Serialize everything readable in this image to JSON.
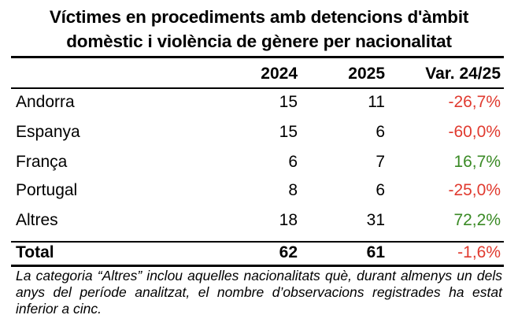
{
  "title": {
    "line1": "Víctimes en procediments amb detencions d'àmbit",
    "line2": "domèstic i violència de gènere per nacionalitat"
  },
  "table": {
    "headers": {
      "name": "",
      "y1": "2024",
      "y2": "2025",
      "var": "Var. 24/25"
    },
    "rows": [
      {
        "name": "Andorra",
        "y1": "15",
        "y2": "11",
        "var": "-26,7%",
        "trend": "neg"
      },
      {
        "name": "Espanya",
        "y1": "15",
        "y2": "6",
        "var": "-60,0%",
        "trend": "neg"
      },
      {
        "name": "França",
        "y1": "6",
        "y2": "7",
        "var": "16,7%",
        "trend": "pos"
      },
      {
        "name": "Portugal",
        "y1": "8",
        "y2": "6",
        "var": "-25,0%",
        "trend": "neg"
      },
      {
        "name": "Altres",
        "y1": "18",
        "y2": "31",
        "var": "72,2%",
        "trend": "pos"
      }
    ],
    "total": {
      "name": "Total",
      "y1": "62",
      "y2": "61",
      "var": "-1,6%",
      "trend": "neg"
    }
  },
  "colors": {
    "negative": "#e03a2f",
    "positive": "#3a8a25"
  },
  "footnote": "La categoria “Altres” inclou aquelles nacionalitats què, durant almenys un dels anys del període analitzat, el nombre d’observacions registrades ha estat inferior a cinc."
}
